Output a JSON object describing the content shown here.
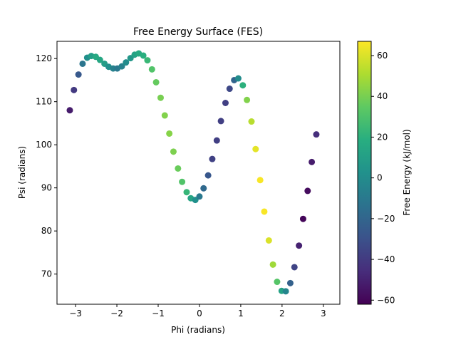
{
  "chart_data": {
    "type": "scatter",
    "title": "Free Energy Surface (FES)",
    "xlabel": "Phi (radians)",
    "ylabel": "Psi (radians)",
    "xlim": [
      -3.45,
      3.4
    ],
    "ylim": [
      63,
      124
    ],
    "xticks": [
      -3,
      -2,
      -1,
      0,
      1,
      2,
      3
    ],
    "yticks": [
      70,
      80,
      90,
      100,
      110,
      120
    ],
    "grid": false,
    "colorbar": {
      "label": "Free Energy (kJ/mol)",
      "colormap": "viridis",
      "range": [
        -62,
        67
      ],
      "ticks": [
        -60,
        -40,
        -20,
        0,
        20,
        40,
        60
      ]
    },
    "points": [
      {
        "x": -3.14,
        "y": 108.0,
        "c": -52
      },
      {
        "x": -3.04,
        "y": 112.7,
        "c": -40
      },
      {
        "x": -2.93,
        "y": 116.3,
        "c": -26
      },
      {
        "x": -2.83,
        "y": 118.8,
        "c": -12
      },
      {
        "x": -2.72,
        "y": 120.2,
        "c": 2
      },
      {
        "x": -2.62,
        "y": 120.6,
        "c": 10
      },
      {
        "x": -2.51,
        "y": 120.4,
        "c": 16
      },
      {
        "x": -2.41,
        "y": 119.7,
        "c": 14
      },
      {
        "x": -2.3,
        "y": 118.8,
        "c": 9
      },
      {
        "x": -2.2,
        "y": 118.1,
        "c": 2
      },
      {
        "x": -2.09,
        "y": 117.7,
        "c": -6
      },
      {
        "x": -1.99,
        "y": 117.7,
        "c": -10
      },
      {
        "x": -1.88,
        "y": 118.2,
        "c": -6
      },
      {
        "x": -1.78,
        "y": 119.1,
        "c": 0
      },
      {
        "x": -1.67,
        "y": 120.1,
        "c": 6
      },
      {
        "x": -1.57,
        "y": 120.9,
        "c": 12
      },
      {
        "x": -1.47,
        "y": 121.2,
        "c": 16
      },
      {
        "x": -1.36,
        "y": 120.7,
        "c": 19
      },
      {
        "x": -1.26,
        "y": 119.6,
        "c": 24
      },
      {
        "x": -1.15,
        "y": 117.5,
        "c": 31
      },
      {
        "x": -1.05,
        "y": 114.5,
        "c": 36
      },
      {
        "x": -0.94,
        "y": 110.9,
        "c": 40
      },
      {
        "x": -0.84,
        "y": 106.8,
        "c": 42
      },
      {
        "x": -0.73,
        "y": 102.6,
        "c": 43
      },
      {
        "x": -0.63,
        "y": 98.4,
        "c": 41
      },
      {
        "x": -0.52,
        "y": 94.5,
        "c": 37
      },
      {
        "x": -0.42,
        "y": 91.4,
        "c": 31
      },
      {
        "x": -0.31,
        "y": 89.0,
        "c": 23
      },
      {
        "x": -0.21,
        "y": 87.6,
        "c": 13
      },
      {
        "x": -0.1,
        "y": 87.2,
        "c": 2
      },
      {
        "x": 0.0,
        "y": 88.0,
        "c": -10
      },
      {
        "x": 0.1,
        "y": 89.9,
        "c": -18
      },
      {
        "x": 0.21,
        "y": 92.9,
        "c": -27
      },
      {
        "x": 0.31,
        "y": 96.7,
        "c": -37
      },
      {
        "x": 0.42,
        "y": 101.0,
        "c": -38
      },
      {
        "x": 0.52,
        "y": 105.5,
        "c": -38
      },
      {
        "x": 0.63,
        "y": 109.7,
        "c": -38
      },
      {
        "x": 0.73,
        "y": 113.0,
        "c": -34
      },
      {
        "x": 0.84,
        "y": 115.0,
        "c": -20
      },
      {
        "x": 0.94,
        "y": 115.4,
        "c": 0
      },
      {
        "x": 1.05,
        "y": 113.8,
        "c": 20
      },
      {
        "x": 1.15,
        "y": 110.4,
        "c": 42
      },
      {
        "x": 1.26,
        "y": 105.4,
        "c": 53
      },
      {
        "x": 1.36,
        "y": 99.0,
        "c": 62
      },
      {
        "x": 1.47,
        "y": 91.8,
        "c": 66
      },
      {
        "x": 1.57,
        "y": 84.5,
        "c": 66
      },
      {
        "x": 1.68,
        "y": 77.8,
        "c": 60
      },
      {
        "x": 1.78,
        "y": 72.2,
        "c": 48
      },
      {
        "x": 1.88,
        "y": 68.2,
        "c": 32
      },
      {
        "x": 1.99,
        "y": 66.1,
        "c": 12
      },
      {
        "x": 2.09,
        "y": 66.0,
        "c": -4
      },
      {
        "x": 2.2,
        "y": 67.9,
        "c": -22
      },
      {
        "x": 2.3,
        "y": 71.6,
        "c": -36
      },
      {
        "x": 2.41,
        "y": 76.6,
        "c": -50
      },
      {
        "x": 2.51,
        "y": 82.8,
        "c": -60
      },
      {
        "x": 2.62,
        "y": 89.3,
        "c": -58
      },
      {
        "x": 2.72,
        "y": 96.0,
        "c": -52
      },
      {
        "x": 2.83,
        "y": 102.4,
        "c": -45
      }
    ]
  }
}
